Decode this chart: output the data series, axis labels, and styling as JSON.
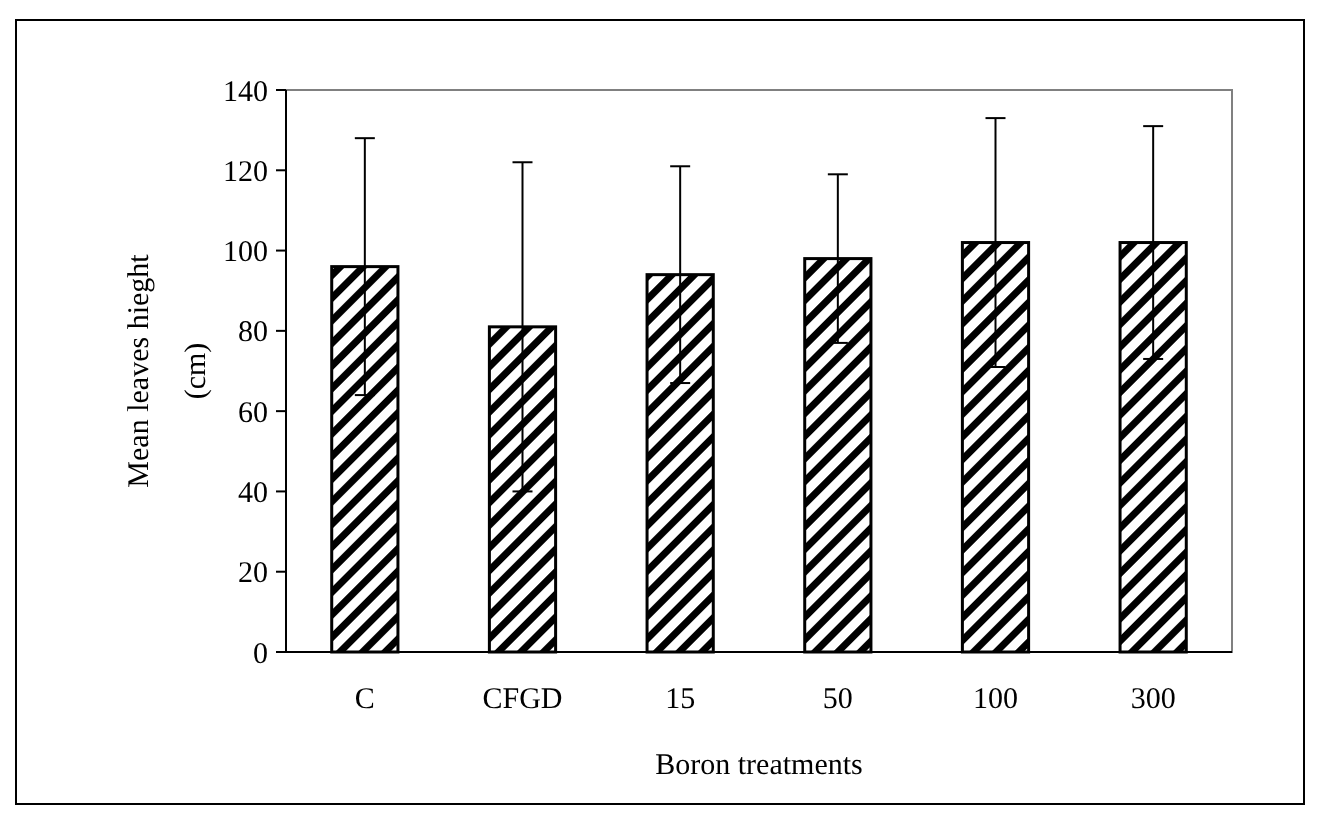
{
  "chart_data": {
    "type": "bar",
    "xlabel": "Boron treatments",
    "ylabel": "Mean leaves hieght\n(cm)",
    "categories": [
      "C",
      "CFGD",
      "15",
      "50",
      "100",
      "300"
    ],
    "values": [
      96,
      81,
      94,
      98,
      102,
      102
    ],
    "errors": [
      32,
      41,
      27,
      21,
      31,
      29
    ],
    "color": "#000000",
    "ylim": [
      0,
      140
    ],
    "yticks": [
      0,
      20,
      40,
      60,
      80,
      100,
      120,
      140
    ],
    "grid": false
  }
}
